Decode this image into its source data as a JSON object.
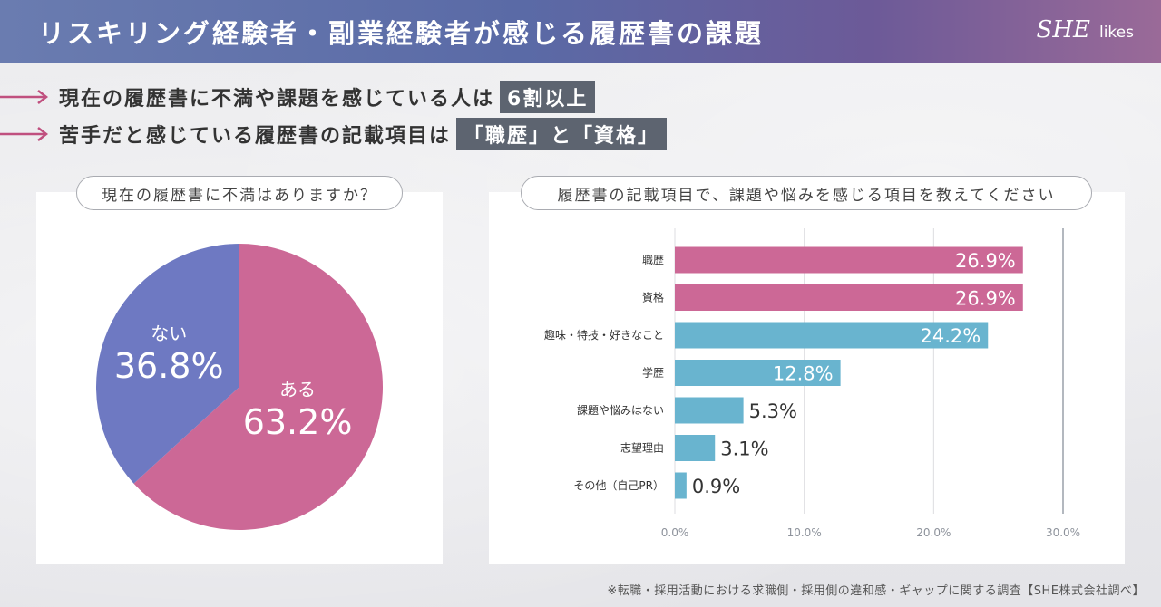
{
  "header": {
    "title": "リスキリング経験者・副業経験者が感じる履歴書の課題",
    "logo_main": "SHE",
    "logo_sub": "likes"
  },
  "points": [
    {
      "text": "現在の履歴書に不満や課題を感じている人は",
      "highlight": "6割以上"
    },
    {
      "text": "苦手だと感じている履歴書の記載項目は",
      "highlight": "「職歴」と「資格」"
    }
  ],
  "colors": {
    "pink": "#cc6896",
    "purple": "#6e79c2",
    "blue": "#69b4cf",
    "arrow": "#c0507f"
  },
  "chart_data": [
    {
      "type": "pie",
      "title": "現在の履歴書に不満はありますか？",
      "slices": [
        {
          "label": "ある",
          "value": 63.2,
          "value_label": "63.2%",
          "color": "#cc6896"
        },
        {
          "label": "ない",
          "value": 36.8,
          "value_label": "36.8%",
          "color": "#6e79c2"
        }
      ]
    },
    {
      "type": "bar",
      "orientation": "horizontal",
      "title": "履歴書の記載項目で、課題や悩みを感じる項目を教えてください",
      "categories": [
        "職歴",
        "資格",
        "趣味・特技・好きなこと",
        "学歴",
        "課題や悩みはない",
        "志望理由",
        "その他（自己PR）"
      ],
      "values": [
        26.9,
        26.9,
        24.2,
        12.8,
        5.3,
        3.1,
        0.9
      ],
      "value_labels": [
        "26.9%",
        "26.9%",
        "24.2%",
        "12.8%",
        "5.3%",
        "3.1%",
        "0.9%"
      ],
      "colors": [
        "#cc6896",
        "#cc6896",
        "#69b4cf",
        "#69b4cf",
        "#69b4cf",
        "#69b4cf",
        "#69b4cf"
      ],
      "xlim": [
        0,
        30
      ],
      "xticks": [
        0,
        10,
        20,
        30
      ],
      "xtick_labels": [
        "0.0%",
        "10.0%",
        "20.0%",
        "30.0%"
      ],
      "grid": true
    }
  ],
  "footer": "※転職・採用活動における求職側・採用側の違和感・ギャップに関する調査【SHE株式会社調べ】"
}
